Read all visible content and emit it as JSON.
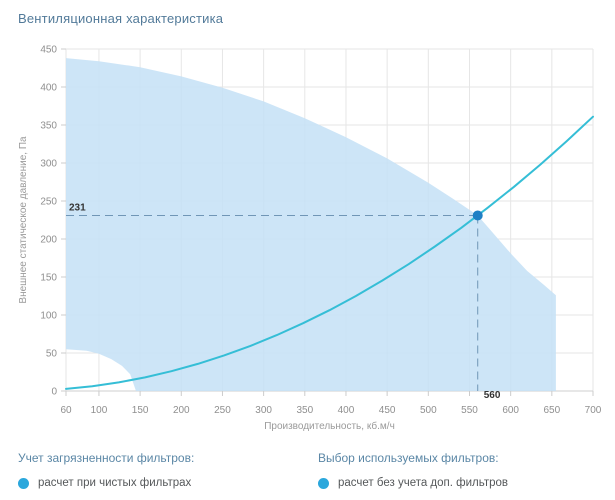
{
  "title": "Вентиляционная характеристика",
  "chart_data": {
    "type": "area",
    "title": "Вентиляционная характеристика",
    "xlabel": "Производительность, кб.м/ч",
    "ylabel": "Внешнее статическое давление, Па",
    "x_axis": {
      "range": [
        60,
        700
      ],
      "ticks": [
        60,
        100,
        150,
        200,
        250,
        300,
        350,
        400,
        450,
        500,
        550,
        600,
        650,
        700
      ]
    },
    "y_axis": {
      "range": [
        0,
        450
      ],
      "ticks": [
        0,
        50,
        100,
        150,
        200,
        250,
        300,
        350,
        400,
        450
      ]
    },
    "grid": true,
    "series": [
      {
        "name": "operating-envelope-area",
        "type": "polygon-area",
        "points": [
          [
            60,
            438
          ],
          [
            100,
            434
          ],
          [
            150,
            426
          ],
          [
            200,
            414
          ],
          [
            250,
            399
          ],
          [
            300,
            381
          ],
          [
            350,
            359
          ],
          [
            400,
            334
          ],
          [
            450,
            306
          ],
          [
            500,
            274
          ],
          [
            530,
            253
          ],
          [
            560,
            231
          ],
          [
            580,
            206
          ],
          [
            600,
            181
          ],
          [
            620,
            158
          ],
          [
            640,
            140
          ],
          [
            655,
            126
          ],
          [
            655,
            0
          ],
          [
            145,
            0
          ],
          [
            138,
            22
          ],
          [
            128,
            33
          ],
          [
            115,
            42
          ],
          [
            100,
            49
          ],
          [
            85,
            53
          ],
          [
            60,
            55
          ]
        ]
      },
      {
        "name": "system-resistance-curve",
        "type": "line",
        "points": [
          [
            60,
            2.7
          ],
          [
            92,
            6.2
          ],
          [
            124,
            11.3
          ],
          [
            156,
            17.9
          ],
          [
            188,
            26.0
          ],
          [
            220,
            35.6
          ],
          [
            252,
            46.8
          ],
          [
            284,
            59.4
          ],
          [
            316,
            73.5
          ],
          [
            348,
            89.2
          ],
          [
            380,
            106.3
          ],
          [
            412,
            125.0
          ],
          [
            444,
            145.2
          ],
          [
            476,
            166.9
          ],
          [
            508,
            190.1
          ],
          [
            540,
            214.8
          ],
          [
            572,
            241.0
          ],
          [
            604,
            268.7
          ],
          [
            636,
            297.9
          ],
          [
            668,
            328.7
          ],
          [
            700,
            360.9
          ]
        ]
      }
    ],
    "operating_point": {
      "x": 560,
      "y": 231,
      "x_label": "560",
      "y_label": "231"
    },
    "colors": {
      "area": "#c4e0f6",
      "curve": "#35bed6",
      "point": "#1f80c5",
      "dashed": "#7096b6",
      "grid": "#e6e6e6",
      "axis_line": "#cfcfcf",
      "tick": "#cccccc",
      "tick_text": "#8f8f8f",
      "axis_title_text": "#9a9a9a",
      "annotation_text": "#333333"
    }
  },
  "legend": {
    "marker_color": "#2ba7dc",
    "sections": [
      {
        "heading": "Учет загрязненности фильтров:",
        "items": [
          "расчет при чистых фильтрах"
        ]
      },
      {
        "heading": "Выбор используемых фильтров:",
        "items": [
          "расчет без учета доп. фильтров"
        ]
      }
    ]
  }
}
